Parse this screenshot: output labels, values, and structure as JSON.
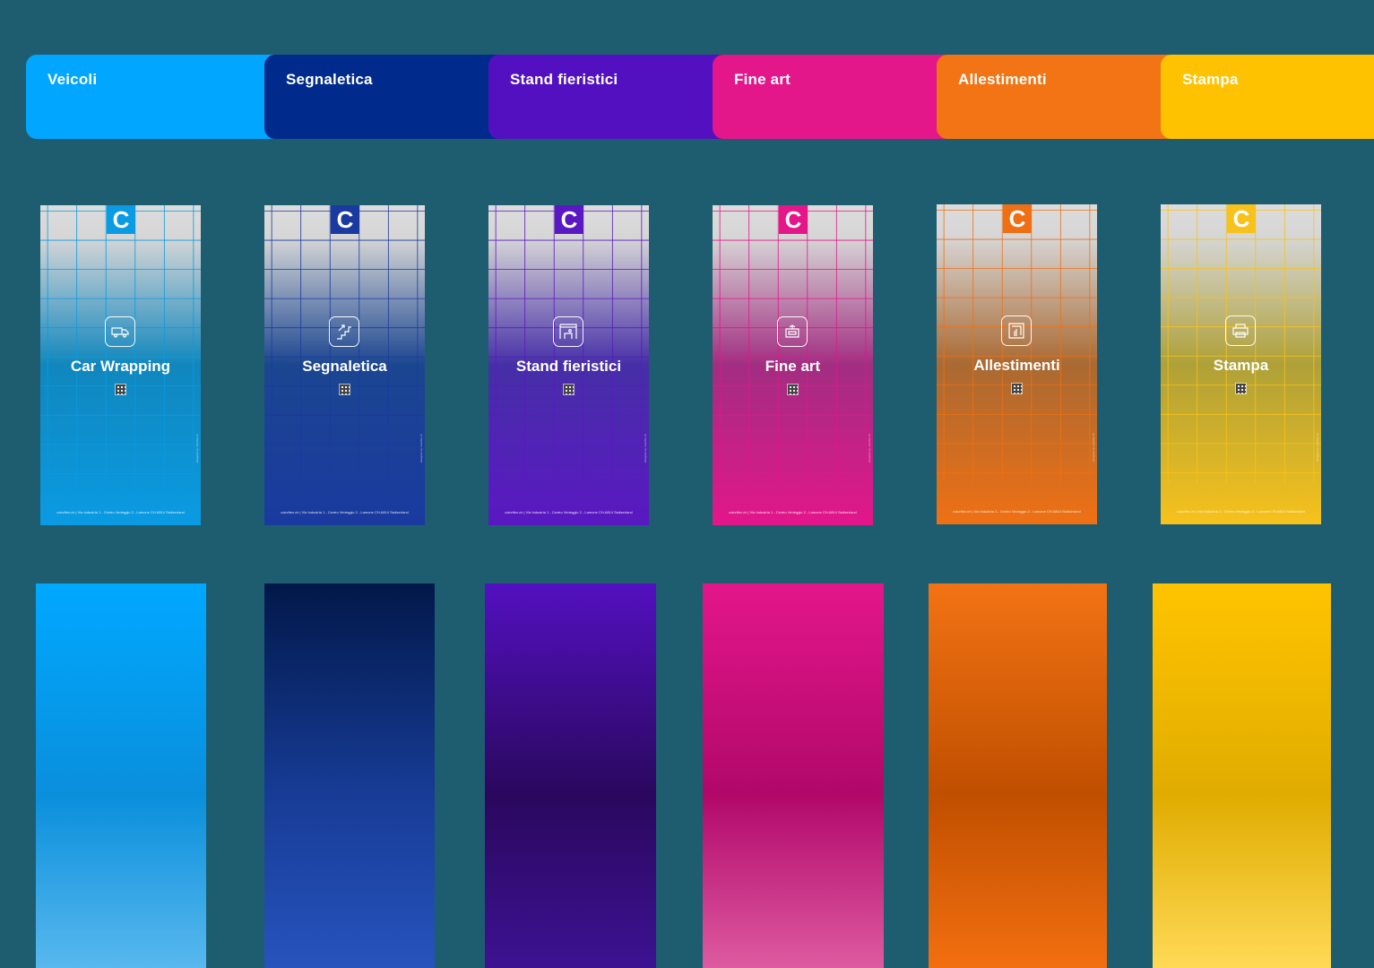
{
  "tabs": [
    {
      "label": "Veicoli",
      "color": "#00a6ff"
    },
    {
      "label": "Segnaletica",
      "color": "#002b8c"
    },
    {
      "label": "Stand fieristici",
      "color": "#5310c0"
    },
    {
      "label": "Fine art",
      "color": "#e3168a"
    },
    {
      "label": "Allestimenti",
      "color": "#f27414"
    },
    {
      "label": "Stampa",
      "color": "#ffc200"
    }
  ],
  "cards": [
    {
      "title": "Car Wrapping",
      "icon": "van-icon",
      "color": "#0a9be3",
      "logo": "C",
      "footer": "colorflex.ch | Via Industria 1 - Centro Vedeggio 2 - Lamone CH-6814 Switzerland",
      "side": "designed by colorflex.ch"
    },
    {
      "title": "Segnaletica",
      "icon": "stairs-sign-icon",
      "color": "#1a3aa0",
      "logo": "C",
      "footer": "colorflex.ch | Via Industria 1 - Centro Vedeggio 2 - Lamone CH-6814 Switzerland",
      "side": "designed by colorflex.ch"
    },
    {
      "title": "Stand fieristici",
      "icon": "booth-icon",
      "color": "#5a18c2",
      "logo": "C",
      "footer": "colorflex.ch | Via Industria 1 - Centro Vedeggio 2 - Lamone CH-6814 Switzerland",
      "side": "designed by colorflex.ch"
    },
    {
      "title": "Fine art",
      "icon": "frame-icon",
      "color": "#e3168a",
      "logo": "C",
      "footer": "colorflex.ch | Via Industria 1 - Centro Vedeggio 2 - Lamone CH-6814 Switzerland",
      "side": "designed by colorflex.ch"
    },
    {
      "title": "Allestimenti",
      "icon": "display-icon",
      "color": "#ef7014",
      "logo": "C",
      "footer": "colorflex.ch | Via Industria 1 - Centro Vedeggio 2 - Lamone CH-6814 Switzerland",
      "side": "designed by colorflex.ch"
    },
    {
      "title": "Stampa",
      "icon": "printer-icon",
      "color": "#f7c21c",
      "logo": "C",
      "footer": "colorflex.ch | Via Industria 1 - Centro Vedeggio 2 - Lamone CH-6814 Switzerland",
      "side": "designed by colorflex.ch"
    }
  ],
  "swatches": [
    {
      "top": "#00a8ff",
      "mid": "#0a8fdc",
      "bottom": "#58b8ee"
    },
    {
      "top": "#02184a",
      "mid": "#173c96",
      "bottom": "#2753bd"
    },
    {
      "top": "#5310c0",
      "mid": "#2a085e",
      "bottom": "#3d1292"
    },
    {
      "top": "#e3168a",
      "mid": "#b1086a",
      "bottom": "#de5aa0"
    },
    {
      "top": "#f27314",
      "mid": "#c04f00",
      "bottom": "#f26f10"
    },
    {
      "top": "#ffc400",
      "mid": "#e0ac00",
      "bottom": "#ffd957"
    }
  ]
}
